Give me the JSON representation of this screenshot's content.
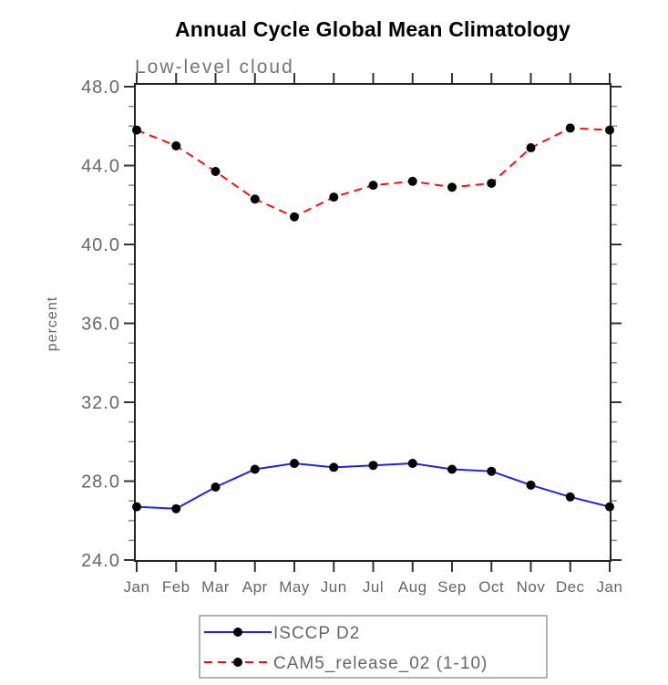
{
  "page": {
    "background": "#ffffff"
  },
  "chart_data": {
    "type": "line",
    "title": "Annual Cycle Global Mean Climatology",
    "subtitle": "Low-level cloud",
    "ylabel": "percent",
    "xlabel": "",
    "categories": [
      "Jan",
      "Feb",
      "Mar",
      "Apr",
      "May",
      "Jun",
      "Jul",
      "Aug",
      "Sep",
      "Oct",
      "Nov",
      "Dec",
      "Jan"
    ],
    "ylim": [
      24.0,
      48.0
    ],
    "y_major_ticks": [
      24.0,
      28.0,
      32.0,
      36.0,
      40.0,
      44.0,
      48.0
    ],
    "y_tick_labels": [
      "24.0",
      "28.0",
      "32.0",
      "36.0",
      "40.0",
      "44.0",
      "48.0"
    ],
    "y_minor_tick_interval": 1.0,
    "grid": "off",
    "legend_position": "bottom-center",
    "frame_color": "#222222",
    "text_color": "#666666",
    "series": [
      {
        "name": "ISCCP D2",
        "line_style": "solid",
        "color": "#2222dd",
        "marker": "filled-circle",
        "marker_color": "#000000",
        "values": [
          26.7,
          26.6,
          27.7,
          28.6,
          28.9,
          28.7,
          28.8,
          28.9,
          28.6,
          28.5,
          27.8,
          27.2,
          26.7
        ]
      },
      {
        "name": "CAM5_release_02 (1-10)",
        "line_style": "dashed",
        "color": "#ee1111",
        "marker": "filled-circle",
        "marker_color": "#000000",
        "values": [
          45.8,
          45.0,
          43.7,
          42.3,
          41.4,
          42.4,
          43.0,
          43.2,
          42.9,
          43.1,
          44.9,
          45.9,
          45.8
        ]
      }
    ]
  }
}
